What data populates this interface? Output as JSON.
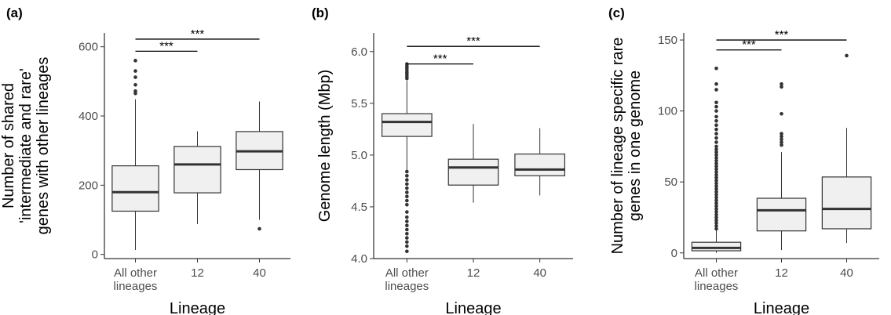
{
  "chart_data": [
    {
      "type": "box",
      "panel_label": "(a)",
      "xlabel": "Lineage",
      "ylabel": [
        "Number of shared",
        "'intermediate and rare'",
        "genes with other lineages"
      ],
      "categories": [
        [
          "All other",
          "lineages"
        ],
        [
          "12"
        ],
        [
          "40"
        ]
      ],
      "ylim": [
        -12,
        640
      ],
      "yticks": [
        0,
        200,
        400,
        600
      ],
      "boxes": [
        {
          "whisker_low": 13,
          "q1": 125,
          "median": 180,
          "q3": 256,
          "whisker_high": 448,
          "outliers": [
            465,
            472,
            490,
            512,
            530,
            560
          ]
        },
        {
          "whisker_low": 88,
          "q1": 178,
          "median": 260,
          "q3": 312,
          "whisker_high": 356,
          "outliers": []
        },
        {
          "whisker_low": 100,
          "q1": 245,
          "median": 298,
          "q3": 355,
          "whisker_high": 442,
          "outliers": [
            74
          ]
        }
      ],
      "significance": [
        {
          "from": 0,
          "to": 1,
          "y": 587,
          "label": "***"
        },
        {
          "from": 0,
          "to": 2,
          "y": 622,
          "label": "***"
        }
      ]
    },
    {
      "type": "box",
      "panel_label": "(b)",
      "xlabel": "Lineage",
      "ylabel": [
        "Genome length (Mbp)"
      ],
      "categories": [
        [
          "All other",
          "lineages"
        ],
        [
          "12"
        ],
        [
          "40"
        ]
      ],
      "ylim": [
        4.0,
        6.18
      ],
      "yticks": [
        4.0,
        4.5,
        5.0,
        5.5,
        6.0
      ],
      "ytick_labels": [
        "4.0",
        "4.5",
        "5.0",
        "5.5",
        "6.0"
      ],
      "boxes": [
        {
          "whisker_low": 4.85,
          "q1": 5.18,
          "median": 5.32,
          "q3": 5.4,
          "whisker_high": 5.72,
          "outliers": [
            4.07,
            4.12,
            4.16,
            4.2,
            4.24,
            4.28,
            4.32,
            4.36,
            4.4,
            4.45,
            4.52,
            4.56,
            4.6,
            4.64,
            4.68,
            4.72,
            4.76,
            4.8,
            4.84,
            5.74,
            5.76,
            5.78,
            5.8,
            5.82,
            5.84,
            5.86,
            5.88
          ]
        },
        {
          "whisker_low": 4.54,
          "q1": 4.71,
          "median": 4.88,
          "q3": 4.96,
          "whisker_high": 5.3,
          "outliers": []
        },
        {
          "whisker_low": 4.61,
          "q1": 4.8,
          "median": 4.86,
          "q3": 5.01,
          "whisker_high": 5.26,
          "outliers": []
        }
      ],
      "significance": [
        {
          "from": 0,
          "to": 1,
          "y": 5.88,
          "label": "***"
        },
        {
          "from": 0,
          "to": 2,
          "y": 6.05,
          "label": "***"
        }
      ]
    },
    {
      "type": "box",
      "panel_label": "(c)",
      "xlabel": "Lineage",
      "ylabel": [
        "Number of lineage specific rare",
        "genes in one genome"
      ],
      "categories": [
        [
          "All other",
          "lineages"
        ],
        [
          "12"
        ],
        [
          "40"
        ]
      ],
      "ylim": [
        -4,
        155
      ],
      "yticks": [
        0,
        50,
        100,
        150
      ],
      "boxes": [
        {
          "whisker_low": 0,
          "q1": 1.5,
          "median": 3.5,
          "q3": 7.5,
          "whisker_high": 16,
          "outliers": [
            17,
            19,
            21,
            23,
            25,
            27,
            29,
            31,
            33,
            35,
            37,
            39,
            41,
            43,
            45,
            47,
            49,
            51,
            53,
            55,
            57,
            59,
            61,
            63,
            65,
            67,
            69,
            71,
            73,
            75,
            78,
            81,
            84,
            87,
            90,
            93,
            96,
            100,
            103,
            106,
            115,
            119,
            130
          ]
        },
        {
          "whisker_low": 2,
          "q1": 15.5,
          "median": 30,
          "q3": 38.5,
          "whisker_high": 71,
          "outliers": [
            76,
            78,
            80,
            82,
            84,
            98,
            117,
            119
          ]
        },
        {
          "whisker_low": 7,
          "q1": 17,
          "median": 31,
          "q3": 53.5,
          "whisker_high": 88,
          "outliers": [
            139
          ]
        }
      ],
      "significance": [
        {
          "from": 0,
          "to": 1,
          "y": 143,
          "label": "***"
        },
        {
          "from": 0,
          "to": 2,
          "y": 150,
          "label": "***"
        }
      ]
    }
  ],
  "style": {
    "box_fill": "#f0f0f0",
    "box_stroke": "#333333",
    "tick_text": "#4d4d4d",
    "axis_line": "#000000"
  }
}
